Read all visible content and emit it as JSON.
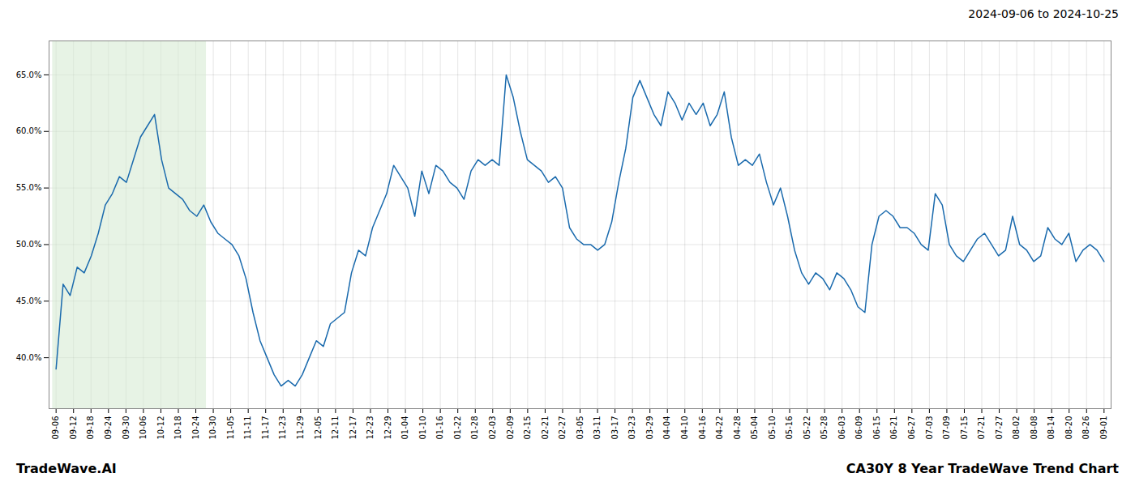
{
  "chart_data": {
    "type": "line",
    "title": "2024-09-06 to 2024-10-25",
    "annotations": [
      "TradeWave.AI",
      "CA30Y 8 Year TradeWave Trend Chart"
    ],
    "color": "#1a6aad",
    "background_color": "#ffffff",
    "grid": true,
    "highlight_range": [
      -0.5,
      21.366666666666667
    ],
    "highlight_color": "#d4ead0",
    "ylim": [
      35.5,
      68.0
    ],
    "yticks": [
      {
        "value": 40.0,
        "label": "40.0%"
      },
      {
        "value": 45.0,
        "label": "45.0%"
      },
      {
        "value": 50.0,
        "label": "50.0%"
      },
      {
        "value": 55.0,
        "label": "55.0%"
      },
      {
        "value": 60.0,
        "label": "60.0%"
      },
      {
        "value": 65.0,
        "label": "65.0%"
      }
    ],
    "xlim": [
      -1,
      150
    ],
    "xticks": [
      {
        "value": 0,
        "label": "09-06"
      },
      {
        "value": 2.4833333333333334,
        "label": "09-12"
      },
      {
        "value": 4.966666666666667,
        "label": "09-18"
      },
      {
        "value": 7.45,
        "label": "09-24"
      },
      {
        "value": 9.933333333333334,
        "label": "09-30"
      },
      {
        "value": 12.416666666666666,
        "label": "10-06"
      },
      {
        "value": 14.9,
        "label": "10-12"
      },
      {
        "value": 17.383333333333333,
        "label": "10-18"
      },
      {
        "value": 19.866666666666667,
        "label": "10-24"
      },
      {
        "value": 22.35,
        "label": "10-30"
      },
      {
        "value": 24.833333333333332,
        "label": "11-05"
      },
      {
        "value": 27.316666666666666,
        "label": "11-11"
      },
      {
        "value": 29.8,
        "label": "11-17"
      },
      {
        "value": 32.28333333333333,
        "label": "11-23"
      },
      {
        "value": 34.766666666666666,
        "label": "11-29"
      },
      {
        "value": 37.25,
        "label": "12-05"
      },
      {
        "value": 39.733333333333334,
        "label": "12-11"
      },
      {
        "value": 42.21666666666667,
        "label": "12-17"
      },
      {
        "value": 44.7,
        "label": "12-23"
      },
      {
        "value": 47.18333333333333,
        "label": "12-29"
      },
      {
        "value": 49.666666666666664,
        "label": "01-04"
      },
      {
        "value": 52.15,
        "label": "01-10"
      },
      {
        "value": 54.63333333333333,
        "label": "01-16"
      },
      {
        "value": 57.11666666666667,
        "label": "01-22"
      },
      {
        "value": 59.6,
        "label": "01-28"
      },
      {
        "value": 62.083333333333336,
        "label": "02-03"
      },
      {
        "value": 64.56666666666666,
        "label": "02-09"
      },
      {
        "value": 67.05,
        "label": "02-15"
      },
      {
        "value": 69.53333333333333,
        "label": "02-21"
      },
      {
        "value": 72.01666666666667,
        "label": "02-27"
      },
      {
        "value": 74.5,
        "label": "03-05"
      },
      {
        "value": 76.98333333333333,
        "label": "03-11"
      },
      {
        "value": 79.46666666666667,
        "label": "03-17"
      },
      {
        "value": 81.95,
        "label": "03-23"
      },
      {
        "value": 84.43333333333334,
        "label": "03-29"
      },
      {
        "value": 86.91666666666667,
        "label": "04-04"
      },
      {
        "value": 89.4,
        "label": "04-10"
      },
      {
        "value": 91.88333333333334,
        "label": "04-16"
      },
      {
        "value": 94.36666666666666,
        "label": "04-22"
      },
      {
        "value": 96.85,
        "label": "04-28"
      },
      {
        "value": 99.33333333333333,
        "label": "05-04"
      },
      {
        "value": 101.81666666666666,
        "label": "05-10"
      },
      {
        "value": 104.3,
        "label": "05-16"
      },
      {
        "value": 106.78333333333333,
        "label": "05-22"
      },
      {
        "value": 109.26666666666667,
        "label": "05-28"
      },
      {
        "value": 111.75,
        "label": "06-03"
      },
      {
        "value": 114.23333333333333,
        "label": "06-09"
      },
      {
        "value": 116.71666666666667,
        "label": "06-15"
      },
      {
        "value": 119.2,
        "label": "06-21"
      },
      {
        "value": 121.68333333333334,
        "label": "06-27"
      },
      {
        "value": 124.16666666666667,
        "label": "07-03"
      },
      {
        "value": 126.65,
        "label": "07-09"
      },
      {
        "value": 129.13333333333333,
        "label": "07-15"
      },
      {
        "value": 131.61666666666667,
        "label": "07-21"
      },
      {
        "value": 134.1,
        "label": "07-27"
      },
      {
        "value": 136.58333333333334,
        "label": "08-02"
      },
      {
        "value": 139.06666666666666,
        "label": "08-08"
      },
      {
        "value": 141.55,
        "label": "08-14"
      },
      {
        "value": 144.03333333333333,
        "label": "08-20"
      },
      {
        "value": 146.51666666666668,
        "label": "08-26"
      },
      {
        "value": 149,
        "label": "09-01"
      }
    ],
    "values": [
      39.0,
      46.5,
      45.5,
      48.0,
      47.5,
      49.0,
      51.0,
      53.5,
      54.5,
      56.0,
      55.5,
      57.5,
      59.5,
      60.5,
      61.5,
      57.5,
      55.0,
      54.5,
      54.0,
      53.0,
      52.5,
      53.5,
      52.0,
      51.0,
      50.5,
      50.0,
      49.0,
      47.0,
      44.0,
      41.5,
      40.0,
      38.5,
      37.5,
      38.0,
      37.5,
      38.5,
      40.0,
      41.5,
      41.0,
      43.0,
      43.5,
      44.0,
      47.5,
      49.5,
      49.0,
      51.5,
      53.0,
      54.5,
      57.0,
      56.0,
      55.0,
      52.5,
      56.5,
      54.5,
      57.0,
      56.5,
      55.5,
      55.0,
      54.0,
      56.5,
      57.5,
      57.0,
      57.5,
      57.0,
      65.0,
      63.0,
      60.0,
      57.5,
      57.0,
      56.5,
      55.5,
      56.0,
      55.0,
      51.5,
      50.5,
      50.0,
      50.0,
      49.5,
      50.0,
      52.0,
      55.5,
      58.5,
      63.0,
      64.5,
      63.0,
      61.5,
      60.5,
      63.5,
      62.5,
      61.0,
      62.5,
      61.5,
      62.5,
      60.5,
      61.5,
      63.5,
      59.5,
      57.0,
      57.5,
      57.0,
      58.0,
      55.5,
      53.5,
      55.0,
      52.5,
      49.5,
      47.5,
      46.5,
      47.5,
      47.0,
      46.0,
      47.5,
      47.0,
      46.0,
      44.5,
      44.0,
      50.0,
      52.5,
      53.0,
      52.5,
      51.5,
      51.5,
      51.0,
      50.0,
      49.5,
      54.5,
      53.5,
      50.0,
      49.0,
      48.5,
      49.5,
      50.5,
      51.0,
      50.0,
      49.0,
      49.5,
      52.5,
      50.0,
      49.5,
      48.5,
      49.0,
      51.5,
      50.5,
      50.0,
      51.0,
      48.5,
      49.5,
      50.0,
      49.5,
      48.5
    ]
  }
}
